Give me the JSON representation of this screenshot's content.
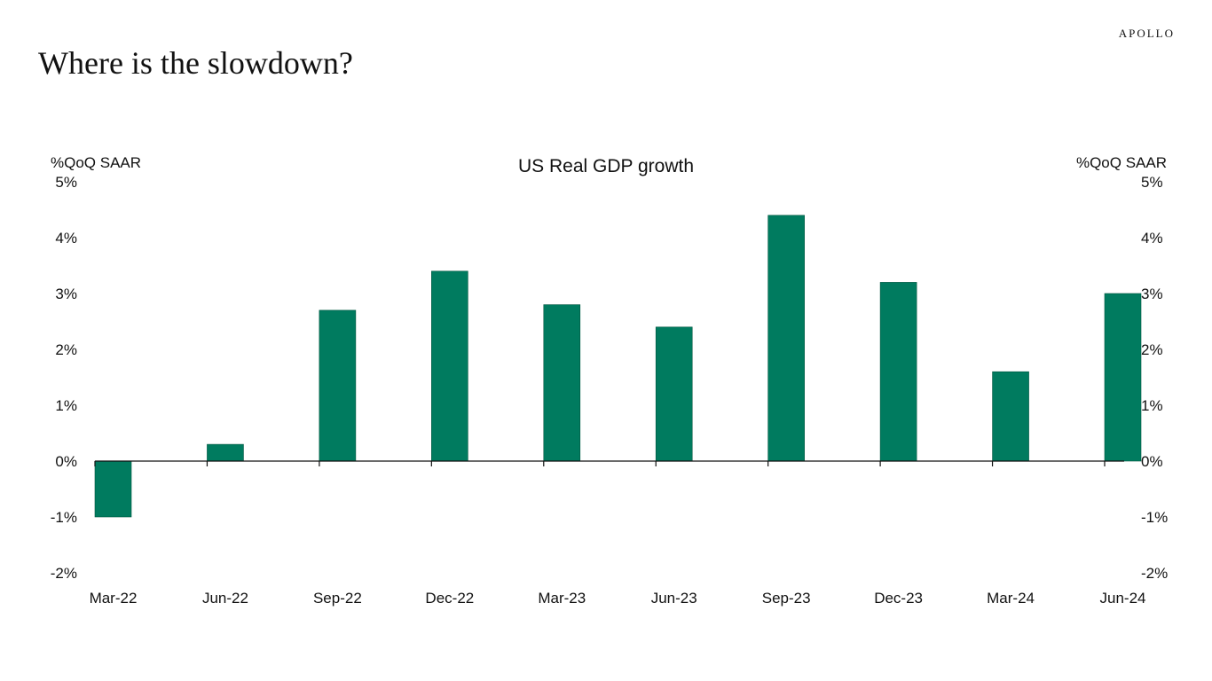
{
  "brand": "APOLLO",
  "page_title": "Where is the slowdown?",
  "chart_data": {
    "type": "bar",
    "title": "US Real GDP growth",
    "left_axis_label": "%QoQ SAAR",
    "right_axis_label": "%QoQ SAAR",
    "categories": [
      "Mar-22",
      "Jun-22",
      "Sep-22",
      "Dec-22",
      "Mar-23",
      "Jun-23",
      "Sep-23",
      "Dec-23",
      "Mar-24",
      "Jun-24"
    ],
    "values": [
      -1.0,
      0.3,
      2.7,
      3.4,
      2.8,
      2.4,
      4.4,
      3.2,
      1.6,
      3.0
    ],
    "ylim": [
      -2,
      5
    ],
    "yticks": [
      -2,
      -1,
      0,
      1,
      2,
      3,
      4,
      5
    ],
    "ytick_format": "%",
    "grid": false,
    "legend": "none",
    "bar_color": "#007B5F"
  }
}
